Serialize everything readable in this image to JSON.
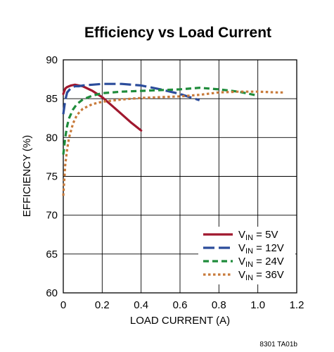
{
  "chart_data": {
    "type": "line",
    "title": "Efficiency vs Load Current",
    "xlabel": "LOAD CURRENT (A)",
    "ylabel": "EFFICIENCY (%)",
    "xlim": [
      0,
      1.2
    ],
    "ylim": [
      60,
      90
    ],
    "xticks": [
      "0",
      "0.2",
      "0.4",
      "0.6",
      "0.8",
      "1.0",
      "1.2"
    ],
    "yticks": [
      "60",
      "65",
      "70",
      "75",
      "80",
      "85",
      "90"
    ],
    "grid": true,
    "legend_position": "bottom-right",
    "series": [
      {
        "name_prefix": "V",
        "name_sub": "IN",
        "name_suffix": " = 5V",
        "color": "#a0182e",
        "dash": "solid",
        "x": [
          0.0,
          0.01,
          0.02,
          0.04,
          0.06,
          0.08,
          0.1,
          0.15,
          0.2,
          0.25,
          0.3,
          0.35,
          0.4
        ],
        "y": [
          85.6,
          86.3,
          86.5,
          86.7,
          86.8,
          86.7,
          86.6,
          86.0,
          85.2,
          84.1,
          83.0,
          81.9,
          80.9
        ]
      },
      {
        "name_prefix": "V",
        "name_sub": "IN",
        "name_suffix": " = 12V",
        "color": "#2b4c9b",
        "dash": "long",
        "x": [
          0.0,
          0.01,
          0.02,
          0.04,
          0.06,
          0.08,
          0.1,
          0.15,
          0.2,
          0.25,
          0.3,
          0.35,
          0.4,
          0.5,
          0.6,
          0.7
        ],
        "y": [
          83.0,
          84.8,
          85.8,
          86.4,
          86.6,
          86.6,
          86.7,
          86.8,
          86.9,
          86.9,
          86.9,
          86.8,
          86.7,
          86.2,
          85.6,
          84.8
        ]
      },
      {
        "name_prefix": "V",
        "name_sub": "IN",
        "name_suffix": " = 24V",
        "color": "#1f8c3b",
        "dash": "medium",
        "x": [
          0.0,
          0.01,
          0.02,
          0.03,
          0.05,
          0.07,
          0.1,
          0.15,
          0.2,
          0.3,
          0.4,
          0.5,
          0.6,
          0.7,
          0.8,
          0.9,
          1.0
        ],
        "y": [
          77.8,
          80.0,
          81.5,
          82.5,
          83.6,
          84.3,
          84.9,
          85.4,
          85.7,
          85.9,
          86.0,
          86.1,
          86.2,
          86.4,
          86.2,
          85.9,
          85.4
        ]
      },
      {
        "name_prefix": "V",
        "name_sub": "IN",
        "name_suffix": " = 36V",
        "color": "#c87a3a",
        "dash": "dot",
        "x": [
          0.0,
          0.005,
          0.01,
          0.02,
          0.03,
          0.05,
          0.07,
          0.1,
          0.15,
          0.2,
          0.3,
          0.4,
          0.5,
          0.6,
          0.7,
          0.8,
          0.9,
          1.0,
          1.1,
          1.14
        ],
        "y": [
          72.5,
          74.5,
          76.5,
          78.5,
          80.0,
          81.8,
          82.9,
          83.7,
          84.3,
          84.6,
          84.9,
          85.1,
          85.2,
          85.3,
          85.5,
          85.8,
          85.9,
          85.9,
          85.8,
          85.8
        ]
      }
    ]
  },
  "footnote": "8301 TA01b"
}
